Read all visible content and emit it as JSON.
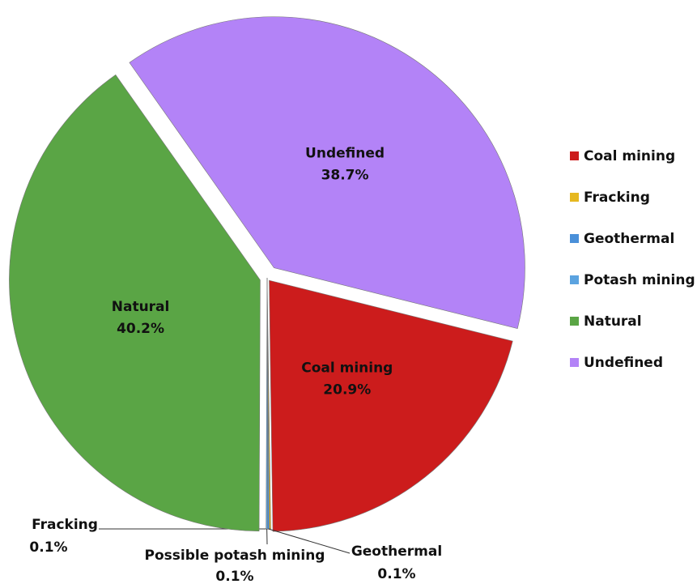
{
  "chart_data": {
    "type": "pie",
    "categories": [
      "Coal mining",
      "Fracking",
      "Geothermal",
      "Potash mining",
      "Natural",
      "Undefined"
    ],
    "slice_labels": [
      "Coal mining",
      "Fracking",
      "Geothermal",
      "Possible potash mining",
      "Natural",
      "Undefined"
    ],
    "values": [
      20.9,
      0.1,
      0.1,
      0.1,
      40.2,
      38.7
    ],
    "value_labels": [
      "20.9%",
      "0.1%",
      "0.1%",
      "0.1%",
      "40.2%",
      "38.7%"
    ],
    "colors": [
      "#cc1c1c",
      "#e6b820",
      "#4a90d9",
      "#5ba3e0",
      "#5aa545",
      "#b383f7"
    ],
    "legend": "right"
  }
}
